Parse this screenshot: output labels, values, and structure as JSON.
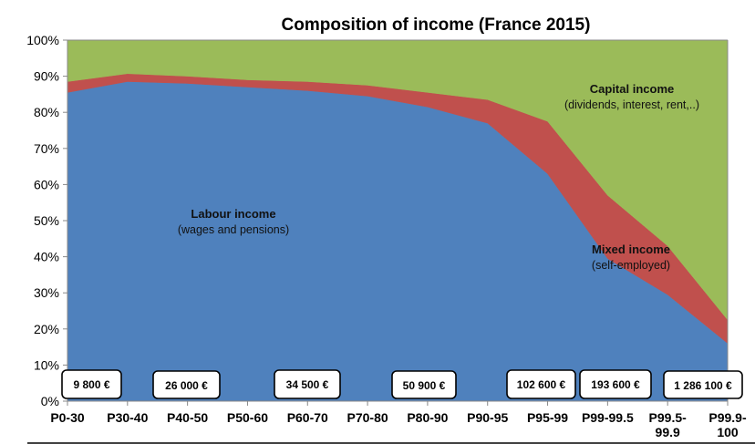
{
  "chart_data": {
    "type": "area",
    "title": "Composition of income (France 2015)",
    "categories": [
      "P0-30",
      "P30-40",
      "P40-50",
      "P50-60",
      "P60-70",
      "P70-80",
      "P80-90",
      "P90-95",
      "P95-99",
      "P99-99.5",
      "P99.5-99.9",
      "P99.9-100"
    ],
    "category_labels": [
      [
        "P0-30"
      ],
      [
        "P30-40"
      ],
      [
        "P40-50"
      ],
      [
        "P50-60"
      ],
      [
        "P60-70"
      ],
      [
        "P70-80"
      ],
      [
        "P80-90"
      ],
      [
        "P90-95"
      ],
      [
        "P95-99"
      ],
      [
        "P99-99.5"
      ],
      [
        "P99.5-",
        "99.9"
      ],
      [
        "P99.9-",
        "100"
      ]
    ],
    "ylim": [
      0,
      100
    ],
    "y_ticks": [
      "0%",
      "10%",
      "20%",
      "30%",
      "40%",
      "50%",
      "60%",
      "70%",
      "80%",
      "90%",
      "100%"
    ],
    "grid": false,
    "stacked": true,
    "series": [
      {
        "name": "Labour income",
        "color": "#4F81BD",
        "values": [
          85.5,
          88.5,
          88,
          87,
          86,
          84.5,
          81.5,
          77,
          63,
          39.5,
          29.5,
          16
        ]
      },
      {
        "name": "Mixed income",
        "color": "#C0504D",
        "values": [
          3,
          2.2,
          2,
          2,
          2.5,
          3,
          4,
          6.5,
          14.5,
          17.5,
          13.5,
          6.5
        ]
      },
      {
        "name": "Capital income",
        "color": "#9BBB59",
        "values": [
          11.5,
          9.3,
          10,
          11,
          11.5,
          12.5,
          14.5,
          16.5,
          22.5,
          43,
          57,
          77.5
        ]
      }
    ],
    "annotations": [
      {
        "title": "Labour income",
        "subtitle": "(wages and pensions)"
      },
      {
        "title": "Mixed income",
        "subtitle": "(self-employed)"
      },
      {
        "title": "Capital income",
        "subtitle": "(dividends, interest, rent,..)"
      }
    ],
    "income_boxes": [
      "9 800 €",
      "26 000 €",
      "34 500 €",
      "50 900 €",
      "102 600 €",
      "193 600 €",
      "1 286 100 €"
    ]
  }
}
